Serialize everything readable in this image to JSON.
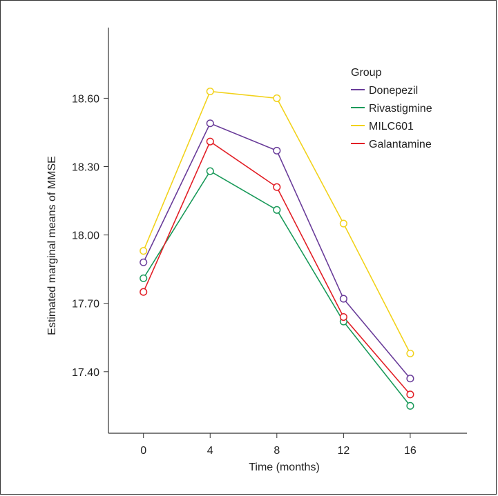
{
  "chart_data": {
    "type": "line",
    "title": "",
    "xlabel": "Time (months)",
    "ylabel": "Estimated marginal means of MMSE",
    "x": [
      0,
      4,
      8,
      12,
      16
    ],
    "x_tick_labels": [
      "0",
      "4",
      "8",
      "12",
      "16"
    ],
    "xlim": [
      -2.1,
      19.4
    ],
    "y_ticks": [
      17.4,
      17.7,
      18.0,
      18.3,
      18.6
    ],
    "y_tick_labels": [
      "17.40",
      "17.70",
      "18.00",
      "18.30",
      "18.60"
    ],
    "ylim": [
      17.13,
      18.91
    ],
    "grid": false,
    "legend": {
      "title": "Group",
      "placement": "top-right"
    },
    "series": [
      {
        "name": "Donepezil",
        "color": "#6a3d9a",
        "values": [
          17.88,
          18.49,
          18.37,
          17.72,
          17.37
        ]
      },
      {
        "name": "Rivastigmine",
        "color": "#1a9a5a",
        "values": [
          17.81,
          18.28,
          18.11,
          17.62,
          17.25
        ]
      },
      {
        "name": "MILC601",
        "color": "#f2d21b",
        "values": [
          17.93,
          18.63,
          18.6,
          18.05,
          17.48
        ]
      },
      {
        "name": "Galantamine",
        "color": "#e21f26",
        "values": [
          17.75,
          18.41,
          18.21,
          17.64,
          17.3
        ]
      }
    ]
  }
}
